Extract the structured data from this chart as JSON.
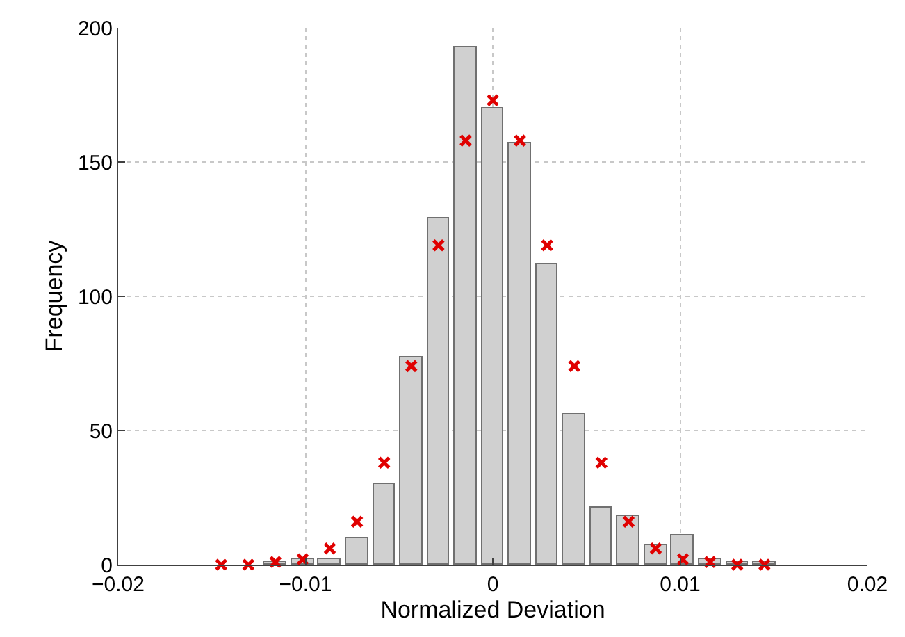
{
  "chart_data": {
    "type": "histogram",
    "xlabel": "Normalized Deviation",
    "ylabel": "Frequency",
    "bins": [
      -0.015225,
      -0.013775,
      -0.012325,
      -0.010875,
      -0.009425,
      -0.007975,
      -0.006525,
      -0.005075,
      -0.003625,
      -0.002175,
      -0.000725,
      0.000725,
      0.002175,
      0.003625,
      0.005075,
      0.006525,
      0.007975,
      0.009425,
      0.010875,
      0.012325,
      0.013775,
      0.015225
    ],
    "values": [
      0,
      0,
      1,
      2,
      2,
      10,
      30,
      77,
      129,
      193,
      170,
      157,
      112,
      56,
      21,
      18,
      7,
      11,
      2,
      1,
      1
    ],
    "color": "#d0d0d0",
    "series": [
      {
        "type": "scatter",
        "color": "#e00000",
        "marker": "cross",
        "x": [
          -0.0145,
          -0.01305,
          -0.0116,
          -0.01015,
          -0.0087,
          -0.00725,
          -0.0058,
          -0.00435,
          -0.0029,
          -0.00145,
          0,
          0.00145,
          0.0029,
          0.00435,
          0.0058,
          0.00725,
          0.0087,
          0.01015,
          0.0116,
          0.01305,
          0.0145
        ],
        "values": [
          0,
          0,
          1,
          2,
          6,
          16,
          38,
          74,
          119,
          158,
          173,
          158,
          119,
          74,
          38,
          16,
          6,
          2,
          1,
          0,
          0
        ]
      }
    ],
    "xlim": [
      -0.02,
      0.02
    ],
    "xticks": [
      {
        "value": -0.02,
        "label": "−0.02"
      },
      {
        "value": -0.01,
        "label": "−0.01"
      },
      0,
      0.01,
      0.02
    ],
    "ylim": [
      0,
      200
    ],
    "yticks": [
      0,
      50,
      100,
      150,
      200
    ],
    "grid": true
  }
}
